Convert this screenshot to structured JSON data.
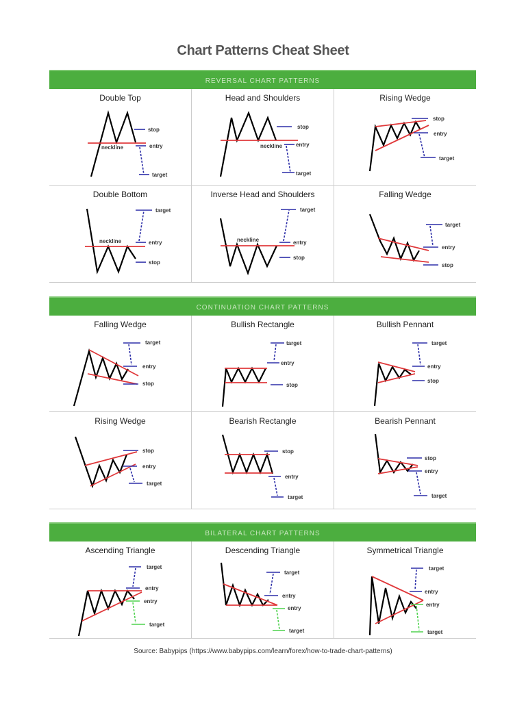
{
  "title": "Chart Patterns Cheat Sheet",
  "colors": {
    "header_green": "#4cae3f",
    "pattern_line": "#000000",
    "trend_line": "#e0393b",
    "bullish_level": "#2d2fa8",
    "bearish_level": "#4fd24f"
  },
  "sections": [
    {
      "heading": "REVERSAL CHART PATTERNS",
      "cells": [
        {
          "name": "Double Top",
          "labels": [
            "stop",
            "entry",
            "target",
            "neckline"
          ]
        },
        {
          "name": "Head and Shoulders",
          "labels": [
            "stop",
            "entry",
            "target",
            "neckline"
          ]
        },
        {
          "name": "Rising Wedge",
          "labels": [
            "stop",
            "entry",
            "target"
          ]
        },
        {
          "name": "Double Bottom",
          "labels": [
            "target",
            "entry",
            "stop",
            "neckline"
          ]
        },
        {
          "name": "Inverse Head and Shoulders",
          "labels": [
            "target",
            "entry",
            "stop",
            "neckline"
          ]
        },
        {
          "name": "Falling Wedge",
          "labels": [
            "target",
            "entry",
            "stop"
          ]
        }
      ]
    },
    {
      "heading": "CONTINUATION CHART PATTERNS",
      "cells": [
        {
          "name": "Falling Wedge",
          "labels": [
            "target",
            "entry",
            "stop"
          ]
        },
        {
          "name": "Bullish Rectangle",
          "labels": [
            "target",
            "entry",
            "stop"
          ]
        },
        {
          "name": "Bullish Pennant",
          "labels": [
            "target",
            "entry",
            "stop"
          ]
        },
        {
          "name": "Rising Wedge",
          "labels": [
            "stop",
            "entry",
            "target"
          ]
        },
        {
          "name": "Bearish Rectangle",
          "labels": [
            "stop",
            "entry",
            "target"
          ]
        },
        {
          "name": "Bearish Pennant",
          "labels": [
            "stop",
            "entry",
            "target"
          ]
        }
      ]
    },
    {
      "heading": "BILATERAL CHART PATTERNS",
      "cells": [
        {
          "name": "Ascending Triangle",
          "labels": [
            "target",
            "entry",
            "entry",
            "target"
          ]
        },
        {
          "name": "Descending Triangle",
          "labels": [
            "target",
            "entry",
            "entry",
            "target"
          ]
        },
        {
          "name": "Symmetrical Triangle",
          "labels": [
            "target",
            "entry",
            "entry",
            "target"
          ]
        }
      ]
    }
  ],
  "source": "Source: Babypips (https://www.babypips.com/learn/forex/how-to-trade-chart-patterns)"
}
